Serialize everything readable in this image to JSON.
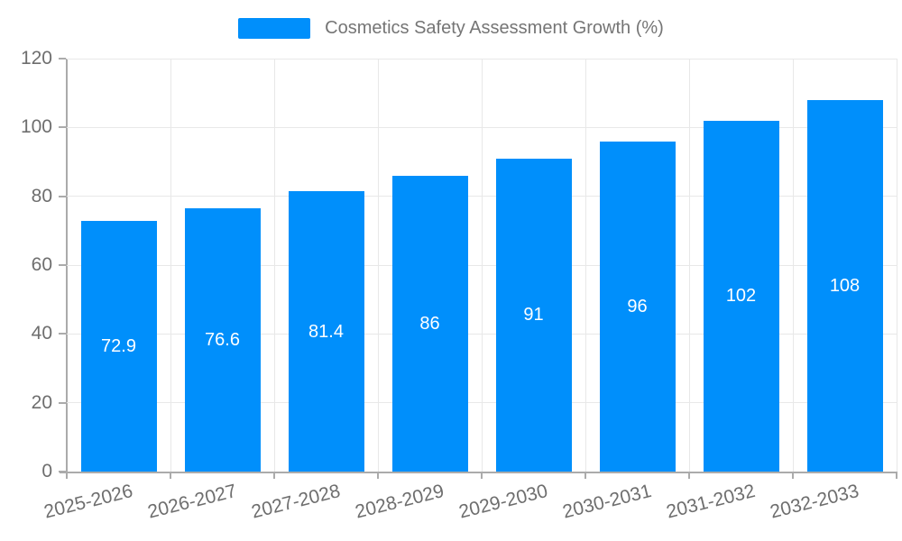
{
  "legend": {
    "label": "Cosmetics Safety Assessment Growth (%)"
  },
  "chart_data": {
    "type": "bar",
    "title": "Cosmetics Safety Assessment Growth (%)",
    "categories": [
      "2025-2026",
      "2026-2027",
      "2027-2028",
      "2028-2029",
      "2029-2030",
      "2030-2031",
      "2031-2032",
      "2032-2033"
    ],
    "values": [
      72.9,
      76.6,
      81.4,
      86,
      91,
      96,
      102,
      108
    ],
    "value_labels": [
      "72.9",
      "76.6",
      "81.4",
      "86",
      "91",
      "96",
      "102",
      "108"
    ],
    "xlabel": "",
    "ylabel": "",
    "ylim": [
      0,
      120
    ],
    "yticks": [
      0,
      20,
      40,
      60,
      80,
      100,
      120
    ],
    "grid": true,
    "legend_position": "top",
    "colors": {
      "bar": "#008FFB",
      "value_label": "#ffffff",
      "axis_text": "#6e6e6e",
      "legend_text": "#757575",
      "gridline": "#e8e8e8",
      "axis_line": "#ababab"
    }
  }
}
